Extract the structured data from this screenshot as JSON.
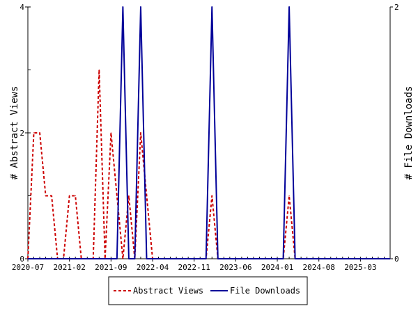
{
  "chart_data": {
    "type": "line",
    "x_tick_labels": [
      "2020-07",
      "2021-02",
      "2021-09",
      "2022-04",
      "2022-11",
      "2023-06",
      "2024-01",
      "2024-08",
      "2025-03"
    ],
    "y_left": {
      "label": "# Abstract Views",
      "ylim": [
        0,
        4
      ],
      "ticks": [
        "0",
        "2",
        "4"
      ]
    },
    "y_right": {
      "label": "# File Downloads",
      "ylim": [
        0,
        2
      ],
      "ticks": [
        "0",
        "2"
      ]
    },
    "legend": {
      "placement": "bottom",
      "entries": [
        "Abstract Views",
        "File Downloads"
      ]
    },
    "grid": false,
    "series": [
      {
        "name": "Abstract Views",
        "axis": "left",
        "color": "#cc0000",
        "style": "dashed",
        "values": [
          0,
          2,
          2,
          1,
          1,
          0,
          0,
          1,
          1,
          0,
          0,
          0,
          3,
          0,
          2,
          1,
          0,
          1,
          0,
          2,
          1,
          0,
          0,
          0,
          0,
          0,
          0,
          0,
          0,
          0,
          0,
          1,
          0,
          0,
          0,
          0,
          0,
          0,
          0,
          0,
          0,
          0,
          0,
          0,
          1,
          0,
          0,
          0,
          0,
          0,
          0,
          0,
          0,
          0,
          0,
          0,
          0,
          0,
          0,
          0,
          0,
          0
        ]
      },
      {
        "name": "File Downloads",
        "axis": "right",
        "color": "#000099",
        "style": "solid",
        "values": [
          0,
          0,
          0,
          0,
          0,
          0,
          0,
          0,
          0,
          0,
          0,
          0,
          0,
          0,
          0,
          0,
          2,
          0,
          0,
          2,
          0,
          0,
          0,
          0,
          0,
          0,
          0,
          0,
          0,
          0,
          0,
          2,
          0,
          0,
          0,
          0,
          0,
          0,
          0,
          0,
          0,
          0,
          0,
          0,
          2,
          0,
          0,
          0,
          0,
          0,
          0,
          0,
          0,
          0,
          0,
          0,
          0,
          0,
          0,
          0,
          0,
          0
        ]
      }
    ]
  }
}
